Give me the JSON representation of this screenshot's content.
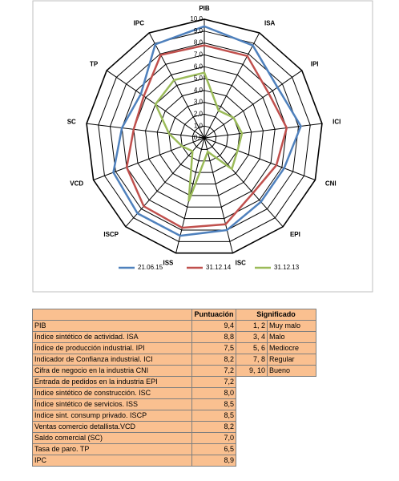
{
  "chart_data": {
    "type": "radar",
    "categories": [
      "PIB",
      "ISA",
      "IPI",
      "ICI",
      "CNI",
      "EPI",
      "ISC",
      "ISS",
      "ISCP",
      "VCD",
      "SC",
      "TP",
      "IPC"
    ],
    "series": [
      {
        "name": "21.06.15",
        "color": "#4f81bd",
        "values": [
          9.4,
          8.8,
          7.5,
          8.2,
          7.2,
          7.2,
          8.0,
          8.5,
          8.5,
          8.2,
          7.0,
          6.5,
          8.9
        ]
      },
      {
        "name": "31.12.14",
        "color": "#c0504d",
        "values": [
          7.8,
          7.8,
          6.6,
          7.0,
          6.5,
          6.2,
          7.5,
          7.8,
          7.7,
          7.0,
          6.0,
          6.2,
          7.9
        ]
      },
      {
        "name": "31.12.13",
        "color": "#9bbb59",
        "values": [
          5.5,
          2.6,
          3.0,
          3.2,
          3.0,
          3.5,
          1.2,
          5.5,
          1.5,
          2.0,
          3.0,
          5.0,
          5.5
        ]
      }
    ],
    "ylim": [
      0,
      10
    ],
    "yticks": [
      {
        "value": 0,
        "label": "0,0"
      },
      {
        "value": 1,
        "label": "1,0"
      },
      {
        "value": 2,
        "label": "2,0"
      },
      {
        "value": 3,
        "label": "3,0"
      },
      {
        "value": 4,
        "label": "4,0"
      },
      {
        "value": 5,
        "label": "5,0"
      },
      {
        "value": 6,
        "label": "6,0"
      },
      {
        "value": 7,
        "label": "7,0"
      },
      {
        "value": 8,
        "label": "8,0"
      },
      {
        "value": 9,
        "label": "9,0"
      },
      {
        "value": 10,
        "label": "10,0"
      }
    ],
    "grid": true
  },
  "table": {
    "header_score": "Puntuación",
    "header_meaning": "Significado",
    "rows": [
      [
        "PIB",
        "9,4"
      ],
      [
        "Índice sintético de actividad. ISA",
        "8,8"
      ],
      [
        "Índice de producción industrial. IPI",
        "7,5"
      ],
      [
        "Indicador de Confianza industrial. ICI",
        "8,2"
      ],
      [
        "Cifra de negocio en la industria CNI",
        "7,2"
      ],
      [
        "Entrada de pedidos en la industria EPI",
        "7,2"
      ],
      [
        "Índice sintético de construcción. ISC",
        "8,0"
      ],
      [
        "Índice sintético de servicios. ISS",
        "8,5"
      ],
      [
        "Indice sint. consump privado. ISCP",
        "8,5"
      ],
      [
        "Ventas comercio detallista.VCD",
        "8,2"
      ],
      [
        "Saldo comercial (SC)",
        "7,0"
      ],
      [
        "Tasa de paro. TP",
        "6,5"
      ],
      [
        "IPC",
        "8,9"
      ]
    ],
    "scale": [
      [
        "1, 2",
        "Muy malo"
      ],
      [
        "3, 4",
        "Malo"
      ],
      [
        "5, 6",
        "Mediocre"
      ],
      [
        "7, 8",
        "Regular"
      ],
      [
        "9, 10",
        "Bueno"
      ]
    ]
  }
}
